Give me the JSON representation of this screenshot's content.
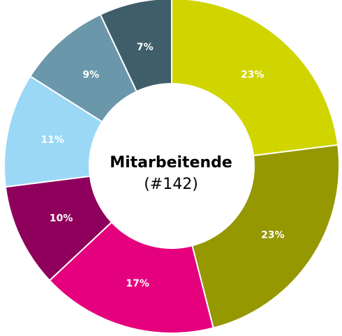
{
  "chart_data": {
    "type": "pie",
    "variant": "donut",
    "center_title": "Mitarbeitende",
    "center_subtitle": "(#142)",
    "slices": [
      {
        "label": "23%",
        "value": 23,
        "color": "#d0d500"
      },
      {
        "label": "23%",
        "value": 23,
        "color": "#959800"
      },
      {
        "label": "17%",
        "value": 17,
        "color": "#e5007d"
      },
      {
        "label": "10%",
        "value": 10,
        "color": "#8e005b"
      },
      {
        "label": "11%",
        "value": 11,
        "color": "#9bd8f6"
      },
      {
        "label": "9%",
        "value": 9,
        "color": "#6b97aa"
      },
      {
        "label": "7%",
        "value": 7,
        "color": "#3f5e6a"
      }
    ],
    "start_angle_deg": 0,
    "direction": "clockwise",
    "separator_color": "#ffffff",
    "label_color": "#ffffff"
  }
}
